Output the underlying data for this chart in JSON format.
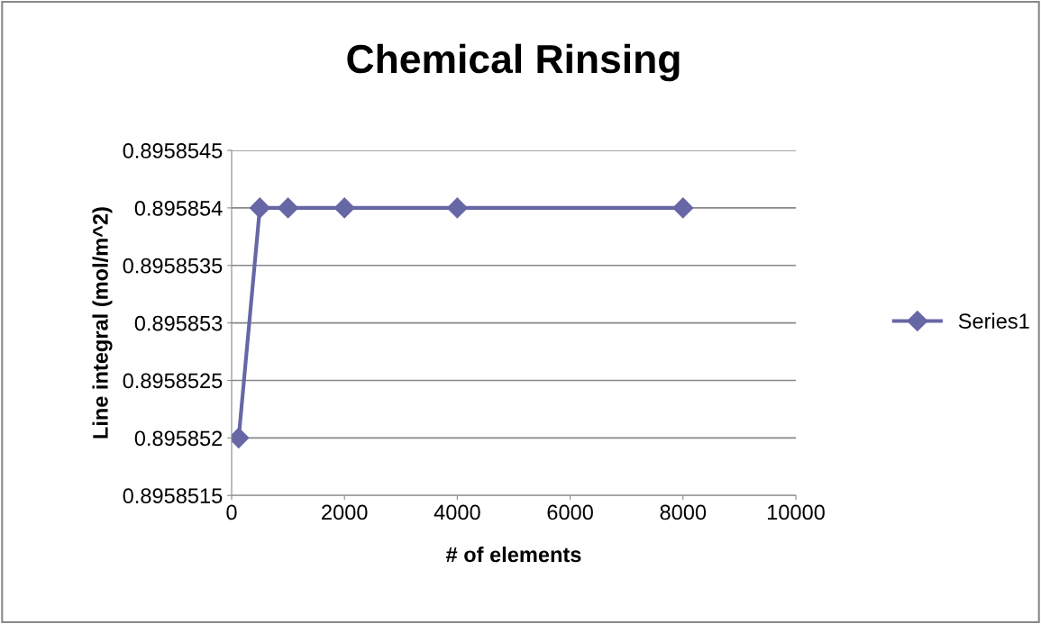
{
  "chart_data": {
    "type": "line",
    "title": "Chemical Rinsing",
    "xlabel": "# of elements",
    "ylabel": "Line integral (mol/m^2)",
    "series": [
      {
        "name": "Series1",
        "color": "#6767a6",
        "x": [
          125,
          500,
          1000,
          2000,
          4000,
          8000
        ],
        "values": [
          0.895852,
          0.895854,
          0.895854,
          0.895854,
          0.895854,
          0.895854
        ]
      }
    ],
    "xlim": [
      0,
      10000
    ],
    "xticks": [
      0,
      2000,
      4000,
      6000,
      8000,
      10000
    ],
    "ylim": [
      0.8958515,
      0.8958545
    ],
    "yticks": [
      0.8958515,
      0.895852,
      0.8958525,
      0.895853,
      0.8958535,
      0.895854,
      0.8958545
    ],
    "grid": "y",
    "legend": "right",
    "marker": "diamond",
    "line_style": "solid"
  }
}
